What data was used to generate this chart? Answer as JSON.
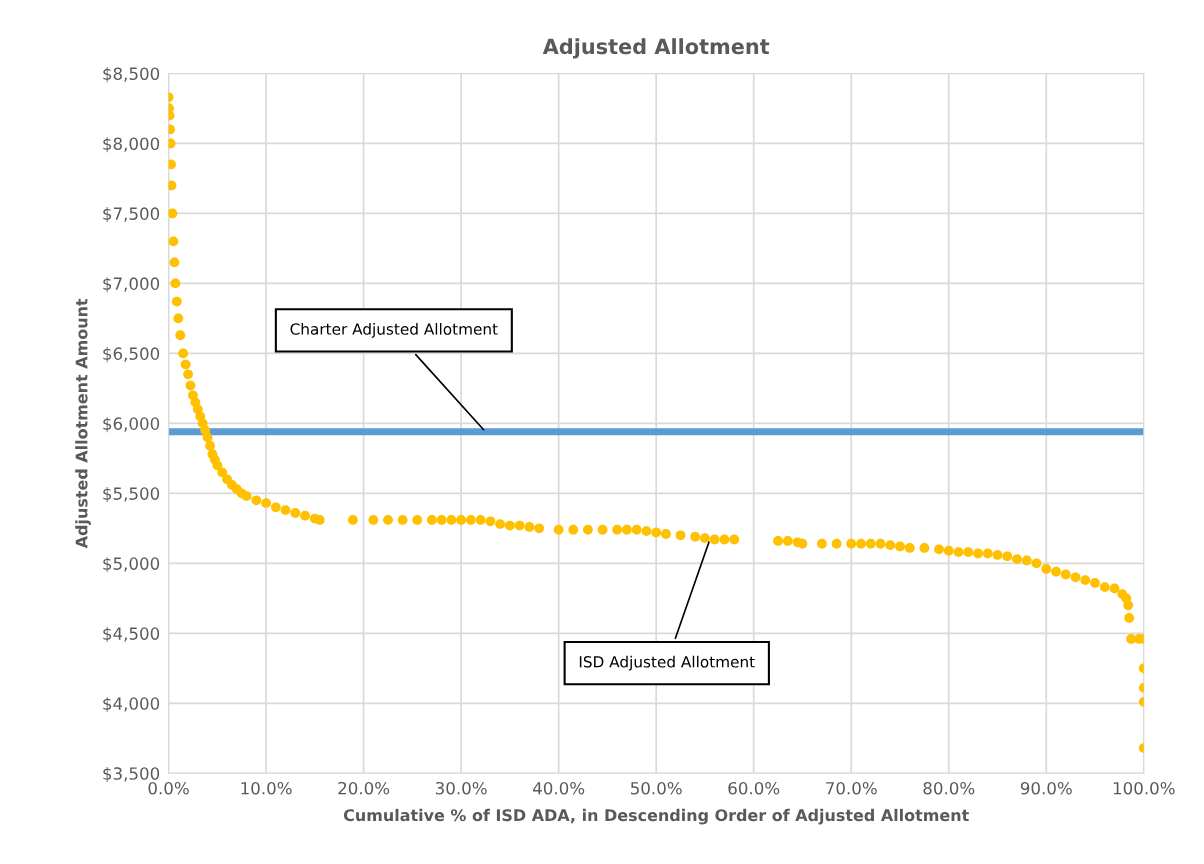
{
  "chart_data": {
    "type": "scatter",
    "title": "Adjusted Allotment",
    "xlabel": "Cumulative % of ISD ADA, in Descending Order of Adjusted Allotment",
    "ylabel": "Adjusted Allotment Amount",
    "series": [
      {
        "marker": "circle",
        "color": "#ffc000",
        "x": [
          0.0,
          0.05,
          0.1,
          0.15,
          0.2,
          0.25,
          0.3,
          0.4,
          0.5,
          0.6,
          0.7,
          0.85,
          1.0,
          1.2,
          1.5,
          1.75,
          2.0,
          2.25,
          2.5,
          2.75,
          3.0,
          3.25,
          3.5,
          3.75,
          4.0,
          4.25,
          4.5,
          4.75,
          5.0,
          5.5,
          6.0,
          6.5,
          7.0,
          7.5,
          8.0,
          9.0,
          10.0,
          11.0,
          12.0,
          13.0,
          14.0,
          15.0,
          15.5,
          18.9,
          21.0,
          22.5,
          24.0,
          25.5,
          27.0,
          28.0,
          29.0,
          30.0,
          31.0,
          32.0,
          33.0,
          34.0,
          35.0,
          36.0,
          37.0,
          38.0,
          40.0,
          41.5,
          43.0,
          44.5,
          46.0,
          47.0,
          48.0,
          49.0,
          50.0,
          51.0,
          52.5,
          54.0,
          55.0,
          56.0,
          57.0,
          58.0,
          62.5,
          63.5,
          64.5,
          65.0,
          67.0,
          68.5,
          70.0,
          71.0,
          72.0,
          73.0,
          74.0,
          75.0,
          76.0,
          77.5,
          79.0,
          80.0,
          81.0,
          82.0,
          83.0,
          84.0,
          85.0,
          86.0,
          87.0,
          88.0,
          89.0,
          90.0,
          91.0,
          92.0,
          93.0,
          94.0,
          95.0,
          96.0,
          97.0,
          97.8,
          98.2,
          98.4,
          98.5,
          98.7,
          99.5,
          100.0,
          100.0,
          100.0,
          100.0,
          100.0
        ],
        "values": [
          8330,
          8250,
          8200,
          8100,
          8000,
          7850,
          7700,
          7500,
          7300,
          7150,
          7000,
          6870,
          6750,
          6630,
          6500,
          6420,
          6350,
          6270,
          6200,
          6150,
          6100,
          6050,
          6000,
          5950,
          5900,
          5840,
          5780,
          5740,
          5700,
          5650,
          5600,
          5560,
          5530,
          5500,
          5480,
          5450,
          5430,
          5400,
          5380,
          5360,
          5340,
          5320,
          5310,
          5310,
          5310,
          5310,
          5310,
          5310,
          5310,
          5310,
          5310,
          5310,
          5310,
          5310,
          5300,
          5280,
          5270,
          5270,
          5260,
          5250,
          5240,
          5240,
          5240,
          5240,
          5240,
          5240,
          5240,
          5230,
          5220,
          5210,
          5200,
          5190,
          5180,
          5170,
          5170,
          5170,
          5160,
          5160,
          5150,
          5140,
          5140,
          5140,
          5140,
          5140,
          5140,
          5140,
          5130,
          5120,
          5110,
          5110,
          5100,
          5090,
          5080,
          5080,
          5070,
          5070,
          5060,
          5050,
          5030,
          5020,
          5000,
          4960,
          4940,
          4920,
          4900,
          4880,
          4860,
          4830,
          4820,
          4780,
          4750,
          4700,
          4610,
          4460,
          4460,
          4460,
          4250,
          4110,
          4010,
          3680
        ]
      },
      {
        "type": "line",
        "color": "#5b9bd5",
        "x": [
          0,
          100
        ],
        "values": [
          5940,
          5940
        ]
      }
    ],
    "annotations": [
      {
        "text": "Charter Adjusted Allotment",
        "x": 32.5,
        "y": 5940
      },
      {
        "text": "ISD Adjusted Allotment",
        "x": 55.5,
        "y": 5170
      }
    ],
    "xlim": [
      0,
      100
    ],
    "ylim": [
      3500,
      8500
    ],
    "xticks": [
      {
        "value": 0,
        "label": "0.0%"
      },
      {
        "value": 10,
        "label": "10.0%"
      },
      {
        "value": 20,
        "label": "20.0%"
      },
      {
        "value": 30,
        "label": "30.0%"
      },
      {
        "value": 40,
        "label": "40.0%"
      },
      {
        "value": 50,
        "label": "50.0%"
      },
      {
        "value": 60,
        "label": "60.0%"
      },
      {
        "value": 70,
        "label": "70.0%"
      },
      {
        "value": 80,
        "label": "80.0%"
      },
      {
        "value": 90,
        "label": "90.0%"
      },
      {
        "value": 100,
        "label": "100.0%"
      }
    ],
    "yticks": [
      {
        "value": 3500,
        "label": "$3,500"
      },
      {
        "value": 4000,
        "label": "$4,000"
      },
      {
        "value": 4500,
        "label": "$4,500"
      },
      {
        "value": 5000,
        "label": "$5,000"
      },
      {
        "value": 5500,
        "label": "$5,500"
      },
      {
        "value": 6000,
        "label": "$6,000"
      },
      {
        "value": 6500,
        "label": "$6,500"
      },
      {
        "value": 7000,
        "label": "$7,000"
      },
      {
        "value": 7500,
        "label": "$7,500"
      },
      {
        "value": 8000,
        "label": "$8,000"
      },
      {
        "value": 8500,
        "label": "$8,500"
      }
    ],
    "grid": true
  }
}
